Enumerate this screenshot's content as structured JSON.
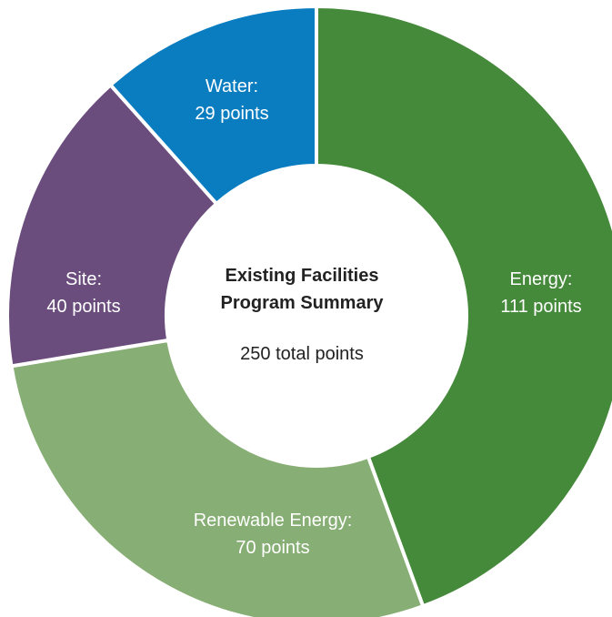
{
  "chart_data": {
    "type": "donut",
    "center": {
      "title_line1": "Existing Facilities",
      "title_line2": "Program Summary",
      "total_text": "250 total points"
    },
    "total": 250,
    "slices": [
      {
        "name": "Energy",
        "value": 111,
        "line1": "Energy:",
        "line2": "111 points",
        "color": "#45893a"
      },
      {
        "name": "Renewable Energy",
        "value": 70,
        "line1": "Renewable Energy:",
        "line2": "70 points",
        "color": "#87ae74"
      },
      {
        "name": "Site",
        "value": 40,
        "line1": "Site:",
        "line2": "40 points",
        "color": "#6a4d7d"
      },
      {
        "name": "Water",
        "value": 29,
        "line1": "Water:",
        "line2": "29 points",
        "color": "#0a7dc1"
      }
    ]
  }
}
